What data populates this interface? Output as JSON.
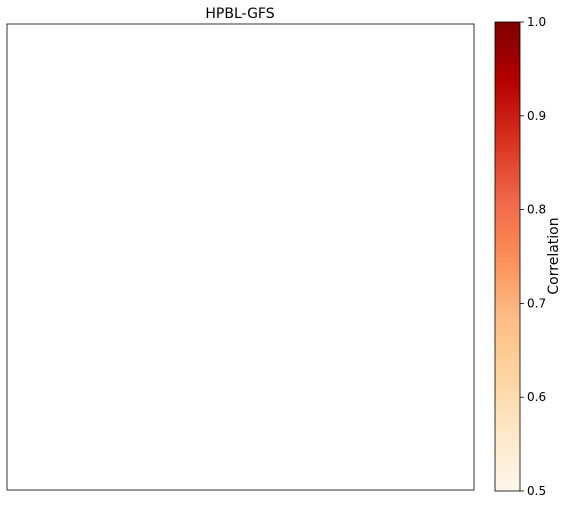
{
  "chart_data": {
    "type": "heatmap",
    "title": "HPBL-GFS",
    "values": [],
    "colorbar": {
      "label": "Correlation",
      "range": [
        0.5,
        1.0
      ],
      "ticks": [
        0.5,
        0.6,
        0.7,
        0.8,
        0.9,
        1.0
      ],
      "tick_labels": [
        "0.5",
        "0.6",
        "0.7",
        "0.8",
        "0.9",
        "1.0"
      ],
      "colormap_stops": [
        "#fff7ec",
        "#fee8c8",
        "#fdd49e",
        "#fdbb84",
        "#fc8d59",
        "#ef6548",
        "#d7301f",
        "#b30000",
        "#7f0000"
      ]
    },
    "axes_ticks_visible": false,
    "grid": false
  }
}
